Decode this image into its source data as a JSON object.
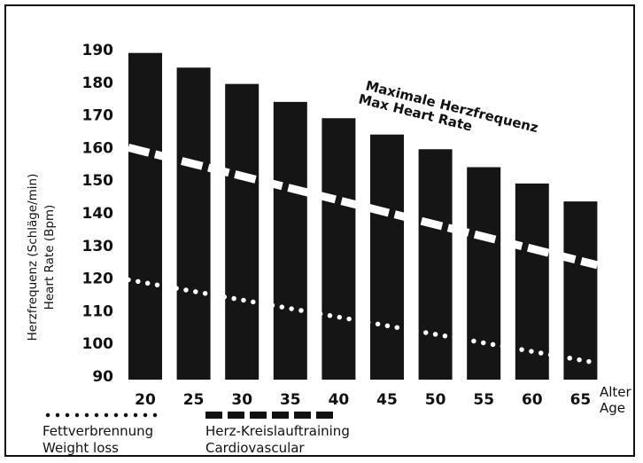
{
  "chart_data": {
    "type": "bar",
    "title": "",
    "ylabel": [
      "Herzfrequenz (Schläge/min)",
      "Heart Rate (Bpm)"
    ],
    "xlabel": [
      "Alter",
      "Age"
    ],
    "categories": [
      "20",
      "25",
      "30",
      "35",
      "40",
      "45",
      "50",
      "55",
      "60",
      "65"
    ],
    "y_ticks": [
      "190",
      "180",
      "170",
      "160",
      "150",
      "140",
      "130",
      "120",
      "110",
      "100",
      "90"
    ],
    "ylim": [
      90,
      190
    ],
    "series": [
      {
        "name": "Maximale Herzfrequenz / Max Heart Rate",
        "values": [
          189,
          184.5,
          179.5,
          174,
          169,
          164,
          159.5,
          154,
          149,
          143.5
        ]
      }
    ],
    "lines": [
      {
        "name": "Herz-Kreislauftraining Cardiovascular",
        "style": "dashed",
        "from": 160,
        "to": 124
      },
      {
        "name": "Fettverbrennung Weight loss",
        "style": "dotted",
        "from": 119.5,
        "to": 94
      }
    ],
    "annotation": [
      "Maximale Herzfrequenz",
      "Max Heart Rate"
    ],
    "legend": {
      "weight_loss": [
        "Fettverbrennung",
        "Weight loss"
      ],
      "cardio": [
        "Herz-Kreislauftraining",
        "Cardiovascular"
      ]
    },
    "colors": {
      "bar": "#151515",
      "line": "#ffffff",
      "text": "#111111"
    }
  }
}
